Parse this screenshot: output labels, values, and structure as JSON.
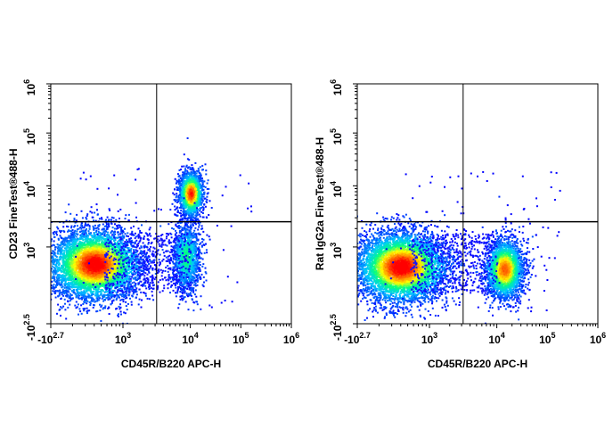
{
  "chart_data": [
    {
      "type": "scatter",
      "subtype": "flow-cytometry-density-dot-plot",
      "xlabel": "CD45R/B220 APC-H",
      "ylabel": "CD23  FineTest®488-H",
      "x_scale": "biexponential",
      "y_scale": "biexponential",
      "x_ticks": [
        {
          "base": "-10",
          "exp": "2.7"
        },
        {
          "base": "10",
          "exp": "3"
        },
        {
          "base": "10",
          "exp": "4"
        },
        {
          "base": "10",
          "exp": "5"
        },
        {
          "base": "10",
          "exp": "6"
        }
      ],
      "y_ticks": [
        {
          "base": "-10",
          "exp": "2.5"
        },
        {
          "base": "10",
          "exp": "3"
        },
        {
          "base": "10",
          "exp": "4"
        },
        {
          "base": "10",
          "exp": "5"
        },
        {
          "base": "10",
          "exp": "6"
        }
      ],
      "quadrant_gate": {
        "x": 3000,
        "y": 2200
      },
      "populations": [
        {
          "x": 250,
          "y": 300
        },
        {
          "x": 14000,
          "y": 6000
        },
        {
          "x": 11000,
          "y": 350
        }
      ],
      "colormap": [
        "#0000ff",
        "#00c8ff",
        "#00ff80",
        "#ffff00",
        "#ff8000",
        "#ff0000"
      ]
    },
    {
      "type": "scatter",
      "subtype": "flow-cytometry-density-dot-plot",
      "xlabel": "CD45R/B220 APC-H",
      "ylabel": "Rat IgG2a  FineTest®488-H",
      "x_scale": "biexponential",
      "y_scale": "biexponential",
      "x_ticks": [
        {
          "base": "-10",
          "exp": "2.7"
        },
        {
          "base": "10",
          "exp": "3"
        },
        {
          "base": "10",
          "exp": "4"
        },
        {
          "base": "10",
          "exp": "5"
        },
        {
          "base": "10",
          "exp": "6"
        }
      ],
      "y_ticks": [
        {
          "base": "-10",
          "exp": "2.5"
        },
        {
          "base": "10",
          "exp": "3"
        },
        {
          "base": "10",
          "exp": "4"
        },
        {
          "base": "10",
          "exp": "5"
        },
        {
          "base": "10",
          "exp": "6"
        }
      ],
      "quadrant_gate": {
        "x": 3000,
        "y": 2200
      },
      "populations": [
        {
          "x": 250,
          "y": 300
        },
        {
          "x": 11000,
          "y": 300
        }
      ],
      "colormap": [
        "#0000ff",
        "#00c8ff",
        "#00ff80",
        "#ffff00",
        "#ff8000",
        "#ff0000"
      ]
    }
  ]
}
